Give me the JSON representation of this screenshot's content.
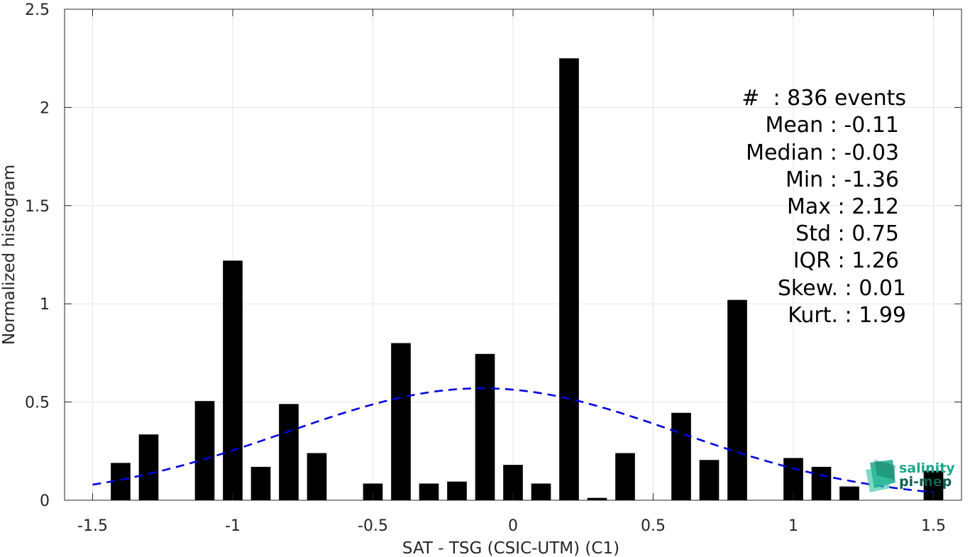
{
  "chart_data": {
    "type": "bar",
    "xlabel": "SAT - TSG (CSIC-UTM) (C1)",
    "ylabel": "Normalized histogram",
    "xlim": [
      -1.6,
      1.6
    ],
    "ylim": [
      0,
      2.5
    ],
    "grid": true,
    "xticks": [
      -1.5,
      -1,
      -0.5,
      0,
      0.5,
      1,
      1.5
    ],
    "xtick_labels": [
      "-1.5",
      "-1",
      "-0.5",
      "0",
      "0.5",
      "1",
      "1.5"
    ],
    "yticks": [
      0,
      0.5,
      1,
      1.5,
      2,
      2.5
    ],
    "ytick_labels": [
      "0",
      "0.5",
      "1",
      "1.5",
      "2",
      "2.5"
    ],
    "bar_width": 0.07,
    "bar_color": "#000000",
    "bars": [
      {
        "x": -1.4,
        "value": 0.19
      },
      {
        "x": -1.3,
        "value": 0.335
      },
      {
        "x": -1.1,
        "value": 0.505
      },
      {
        "x": -1.0,
        "value": 1.22
      },
      {
        "x": -0.9,
        "value": 0.17
      },
      {
        "x": -0.8,
        "value": 0.49
      },
      {
        "x": -0.7,
        "value": 0.24
      },
      {
        "x": -0.5,
        "value": 0.085
      },
      {
        "x": -0.4,
        "value": 0.8
      },
      {
        "x": -0.3,
        "value": 0.085
      },
      {
        "x": -0.2,
        "value": 0.095
      },
      {
        "x": -0.1,
        "value": 0.745
      },
      {
        "x": 0.0,
        "value": 0.18
      },
      {
        "x": 0.1,
        "value": 0.085
      },
      {
        "x": 0.2,
        "value": 2.25
      },
      {
        "x": 0.3,
        "value": 0.012
      },
      {
        "x": 0.4,
        "value": 0.24
      },
      {
        "x": 0.6,
        "value": 0.445
      },
      {
        "x": 0.7,
        "value": 0.205
      },
      {
        "x": 0.8,
        "value": 1.02
      },
      {
        "x": 1.0,
        "value": 0.215
      },
      {
        "x": 1.1,
        "value": 0.17
      },
      {
        "x": 1.2,
        "value": 0.07
      },
      {
        "x": 1.5,
        "value": 0.15
      }
    ],
    "fit_curve": {
      "type": "normal",
      "mean": -0.11,
      "std": 0.7,
      "x_range": [
        -1.5,
        1.5
      ],
      "color": "#0000dd",
      "style": "dashed"
    }
  },
  "stats": {
    "events": "#  : 836 events",
    "mean": "Mean : -0.11",
    "median": "Median : -0.03",
    "min": "Min : -1.36",
    "max": "Max : 2.12",
    "std": "Std : 0.75",
    "iqr": "IQR : 1.26",
    "skew": "Skew. : 0.01",
    "kurt": "Kurt. : 1.99"
  },
  "logo": {
    "line1": "salinity",
    "line2": "pi-mep",
    "color1": "#1aa78a",
    "color2": "#0e5e4e"
  }
}
